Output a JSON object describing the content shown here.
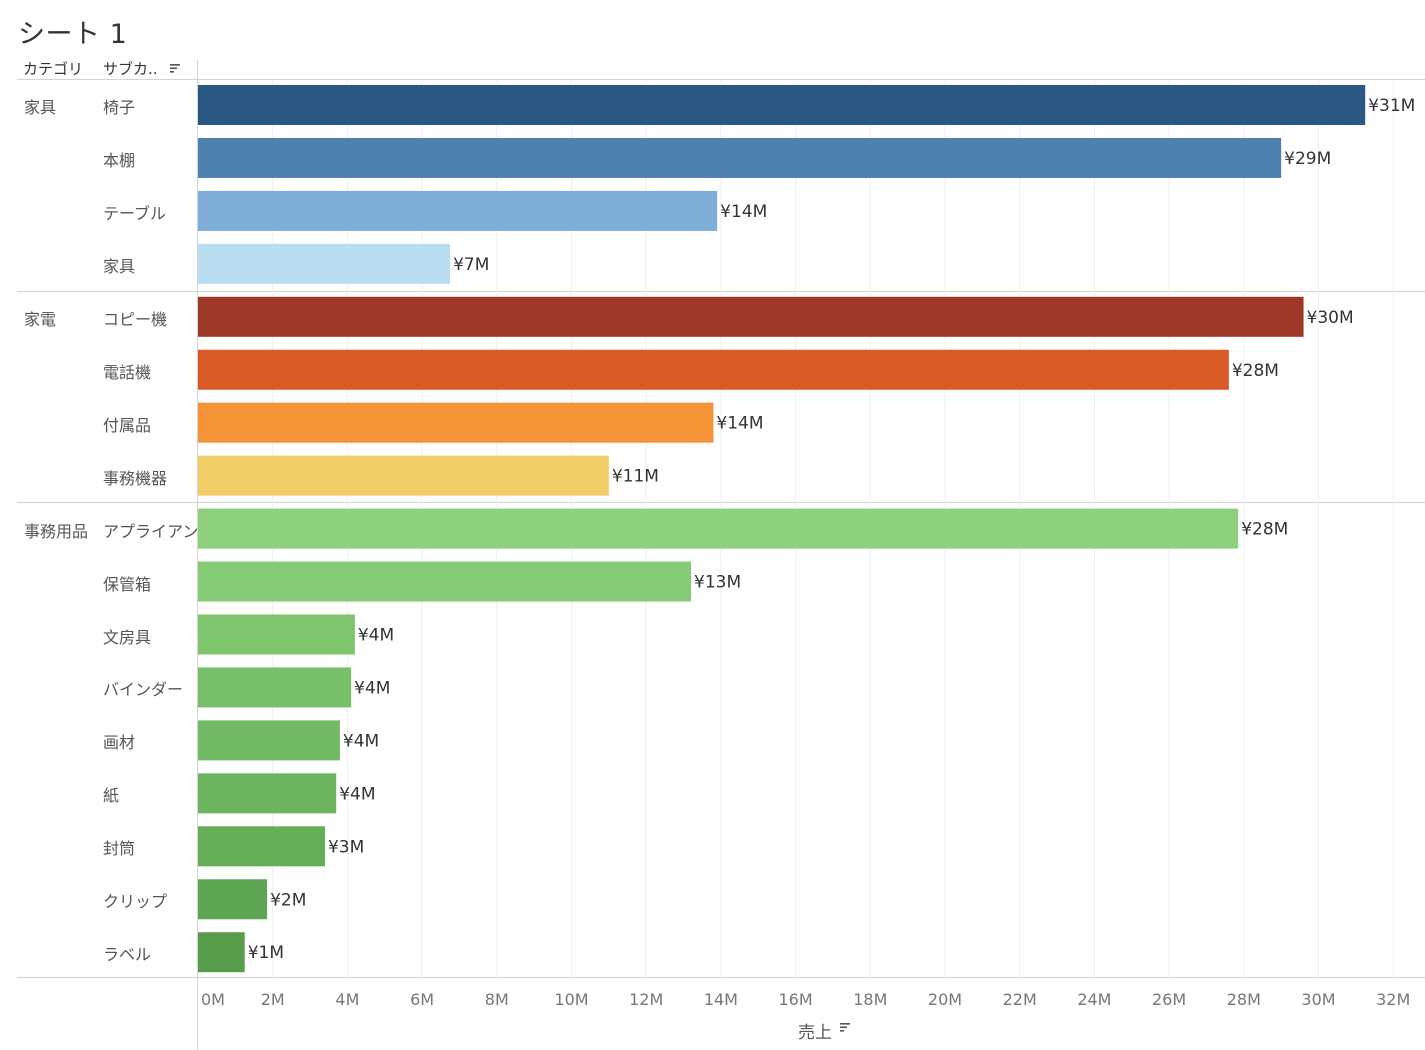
{
  "sheet_title": "シート 1",
  "header": {
    "category_label": "カテゴリ",
    "subcategory_label": "サブカ.."
  },
  "colors": {
    "椅子": "#2a5783",
    "本棚": "#4e80b0",
    "テーブル": "#7eaed6",
    "家具": "#b9ddf1",
    "コピー機": "#9e3826",
    "電話機": "#d95a24",
    "付属品": "#f39336",
    "事務機器": "#f2cf66",
    "アプライアンス": "#8dd17c",
    "保管箱": "#86cc76",
    "文房具": "#7dc46d",
    "バインダー": "#77bf68",
    "画材": "#72ba64",
    "紙": "#6db45e",
    "封筒": "#66ae57",
    "クリップ": "#5ea553",
    "ラベル": "#579d4c"
  },
  "chart_data": {
    "type": "bar",
    "orientation": "horizontal",
    "title": "シート 1",
    "xlabel": "売上",
    "ylabel": "",
    "xlim": [
      0,
      32.5
    ],
    "x_ticks": [
      "0M",
      "2M",
      "4M",
      "6M",
      "8M",
      "10M",
      "12M",
      "14M",
      "16M",
      "18M",
      "20M",
      "22M",
      "24M",
      "26M",
      "28M",
      "30M",
      "32M"
    ],
    "groups": [
      {
        "category": "家具",
        "items": [
          {
            "name": "椅子",
            "value": 31.25,
            "label": "¥31M"
          },
          {
            "name": "本棚",
            "value": 29.0,
            "label": "¥29M"
          },
          {
            "name": "テーブル",
            "value": 13.9,
            "label": "¥14M"
          },
          {
            "name": "家具",
            "value": 6.75,
            "label": "¥7M"
          }
        ]
      },
      {
        "category": "家電",
        "items": [
          {
            "name": "コピー機",
            "value": 29.6,
            "label": "¥30M"
          },
          {
            "name": "電話機",
            "value": 27.6,
            "label": "¥28M"
          },
          {
            "name": "付属品",
            "value": 13.8,
            "label": "¥14M"
          },
          {
            "name": "事務機器",
            "value": 11.0,
            "label": "¥11M"
          }
        ]
      },
      {
        "category": "事務用品",
        "items": [
          {
            "name": "アプライアンス",
            "value": 27.85,
            "label": "¥28M"
          },
          {
            "name": "保管箱",
            "value": 13.2,
            "label": "¥13M"
          },
          {
            "name": "文房具",
            "value": 4.2,
            "label": "¥4M"
          },
          {
            "name": "バインダー",
            "value": 4.1,
            "label": "¥4M"
          },
          {
            "name": "画材",
            "value": 3.8,
            "label": "¥4M"
          },
          {
            "name": "紙",
            "value": 3.7,
            "label": "¥4M"
          },
          {
            "name": "封筒",
            "value": 3.4,
            "label": "¥3M"
          },
          {
            "name": "クリップ",
            "value": 1.85,
            "label": "¥2M"
          },
          {
            "name": "ラベル",
            "value": 1.25,
            "label": "¥1M"
          }
        ]
      }
    ]
  }
}
